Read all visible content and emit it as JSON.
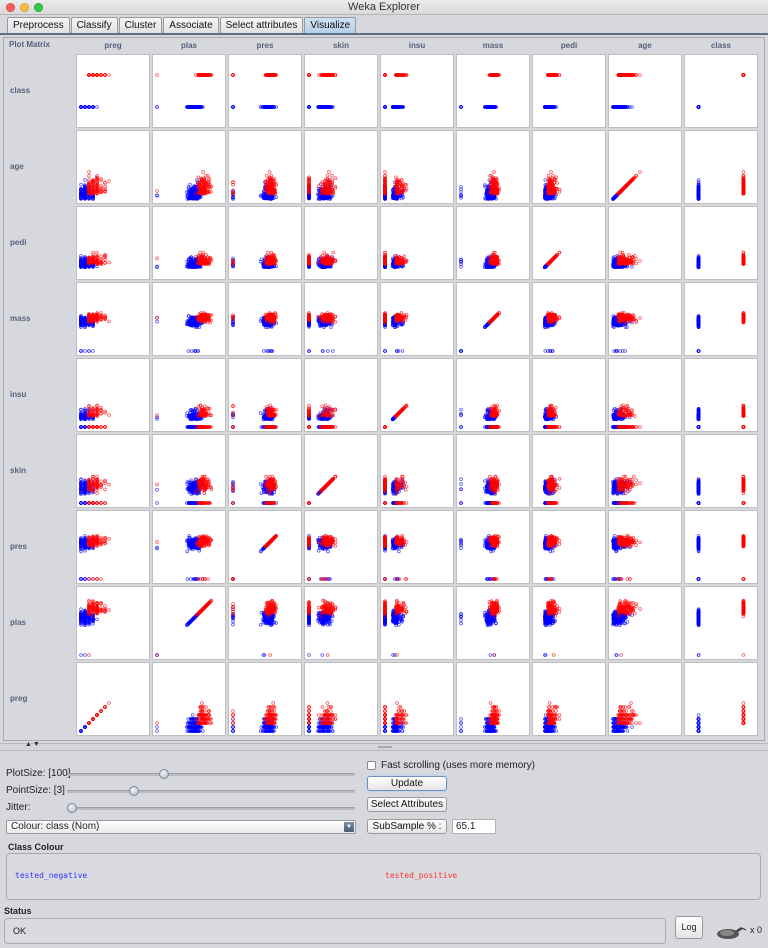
{
  "window": {
    "title": "Weka Explorer"
  },
  "tabs": [
    {
      "label": "Preprocess",
      "active": false
    },
    {
      "label": "Classify",
      "active": false
    },
    {
      "label": "Cluster",
      "active": false
    },
    {
      "label": "Associate",
      "active": false
    },
    {
      "label": "Select attributes",
      "active": false
    },
    {
      "label": "Visualize",
      "active": true
    }
  ],
  "matrix": {
    "title": "Plot Matrix",
    "columns": [
      "preg",
      "plas",
      "pres",
      "skin",
      "insu",
      "mass",
      "pedi",
      "age",
      "class"
    ],
    "rows": [
      "class",
      "age",
      "pedi",
      "mass",
      "insu",
      "skin",
      "pres",
      "plas",
      "preg"
    ],
    "classes": [
      {
        "label": "tested_negative",
        "color": "#0000ff"
      },
      {
        "label": "tested_positive",
        "color": "#ff0000"
      }
    ]
  },
  "chart_data": {
    "type": "scatter",
    "title": "Plot Matrix",
    "description": "9x9 scatter plot matrix of the Pima diabetes dataset attributes, points coloured by class",
    "x_attributes": [
      "preg",
      "plas",
      "pres",
      "skin",
      "insu",
      "mass",
      "pedi",
      "age",
      "class"
    ],
    "y_attributes": [
      "class",
      "age",
      "pedi",
      "mass",
      "insu",
      "skin",
      "pres",
      "plas",
      "preg"
    ],
    "legend": [
      {
        "label": "tested_negative",
        "color": "#0000ff"
      },
      {
        "label": "tested_positive",
        "color": "#ff0000"
      }
    ],
    "plot_size": 100,
    "point_size": 3,
    "jitter": 0,
    "subsample_percent": 65.1
  },
  "controls": {
    "plot_size_label": "PlotSize: [100]",
    "plot_size_value": 100,
    "point_size_label": "PointSize: [3]",
    "point_size_value": 3,
    "jitter_label": "Jitter:",
    "jitter_value": 0,
    "colour_select": "Colour: class  (Nom)",
    "fast_scrolling_label": "Fast scrolling (uses more memory)",
    "fast_scrolling_checked": false,
    "update_button": "Update",
    "select_attributes_button": "Select Attributes",
    "subsample_button": "SubSample % :",
    "subsample_value": "65.1"
  },
  "class_colour": {
    "title": "Class Colour",
    "items": [
      {
        "label": "tested_negative",
        "color": "#3333ff"
      },
      {
        "label": "tested_positive",
        "color": "#ff3333"
      }
    ]
  },
  "status": {
    "title": "Status",
    "text": "OK",
    "log_button": "Log",
    "task_count": "x 0"
  }
}
